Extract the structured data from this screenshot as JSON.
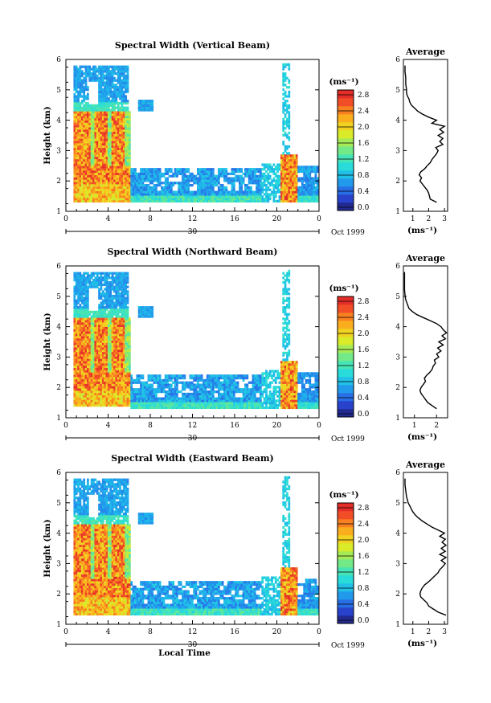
{
  "chart_data": [
    {
      "type": "heatmap",
      "title": "Spectral Width (Vertical Beam)",
      "ylabel": "Height (km)",
      "xlabel": "",
      "x_ticks": [
        "0",
        "4",
        "8",
        "12",
        "16",
        "20",
        "0"
      ],
      "y_ticks": [
        "1",
        "2",
        "3",
        "4",
        "5",
        "6"
      ],
      "xlim_hours": [
        0,
        24
      ],
      "ylim_km": [
        1,
        6
      ],
      "date_label": "30",
      "date_suffix": "Oct 1999",
      "colorbar": {
        "unit": "(ms⁻¹)",
        "ticks": [
          "0.0",
          "0.4",
          "0.8",
          "1.2",
          "1.6",
          "2.0",
          "2.4",
          "2.8"
        ],
        "range": [
          0.0,
          3.0
        ]
      },
      "average_profile": {
        "title": "Average",
        "xlabel": "(ms⁻¹)",
        "x_ticks": [
          "1",
          "2",
          "3"
        ],
        "xlim": [
          0.4,
          3.2
        ],
        "y_ticks": [
          "1",
          "2",
          "3",
          "4",
          "5",
          "6"
        ],
        "height_km": [
          1.3,
          1.4,
          1.5,
          1.6,
          1.7,
          1.8,
          1.9,
          2.0,
          2.1,
          2.2,
          2.3,
          2.4,
          2.5,
          2.6,
          2.7,
          2.8,
          2.9,
          3.0,
          3.1,
          3.2,
          3.3,
          3.4,
          3.5,
          3.6,
          3.7,
          3.8,
          3.9,
          4.0,
          4.1,
          4.2,
          4.3,
          4.4,
          4.5,
          4.6,
          4.7,
          4.8,
          4.9,
          5.0,
          5.2,
          5.4,
          5.6,
          5.8
        ],
        "width_ms": [
          2.5,
          2.1,
          2.05,
          2.0,
          1.9,
          1.75,
          1.6,
          1.45,
          1.55,
          1.4,
          1.5,
          1.75,
          1.9,
          2.1,
          2.2,
          2.35,
          2.5,
          2.6,
          2.45,
          2.9,
          2.7,
          2.9,
          2.6,
          2.95,
          2.7,
          3.0,
          2.2,
          2.5,
          2.0,
          1.6,
          1.3,
          1.1,
          0.9,
          0.8,
          0.75,
          0.65,
          0.6,
          0.6,
          0.55,
          0.55,
          0.5,
          0.5
        ]
      }
    },
    {
      "type": "heatmap",
      "title": "Spectral Width (Northward Beam)",
      "ylabel": "Height (km)",
      "xlabel": "",
      "x_ticks": [
        "0",
        "4",
        "8",
        "12",
        "16",
        "20",
        "0"
      ],
      "y_ticks": [
        "1",
        "2",
        "3",
        "4",
        "5",
        "6"
      ],
      "xlim_hours": [
        0,
        24
      ],
      "ylim_km": [
        1,
        6
      ],
      "date_label": "30",
      "date_suffix": "Oct 1999",
      "colorbar": {
        "unit": "(ms⁻¹)",
        "ticks": [
          "0.0",
          "0.4",
          "0.8",
          "1.2",
          "1.6",
          "2.0",
          "2.4",
          "2.8"
        ],
        "range": [
          0.0,
          3.0
        ]
      },
      "average_profile": {
        "title": "Average",
        "xlabel": "(ms⁻¹)",
        "x_ticks": [
          "1",
          "2"
        ],
        "xlim": [
          0.5,
          2.5
        ],
        "y_ticks": [
          "1",
          "2",
          "3",
          "4",
          "5",
          "6"
        ],
        "height_km": [
          1.3,
          1.4,
          1.5,
          1.6,
          1.7,
          1.8,
          1.9,
          2.0,
          2.1,
          2.2,
          2.3,
          2.4,
          2.5,
          2.6,
          2.7,
          2.8,
          2.9,
          3.0,
          3.1,
          3.2,
          3.3,
          3.4,
          3.5,
          3.6,
          3.7,
          3.8,
          3.9,
          4.0,
          4.1,
          4.2,
          4.3,
          4.4,
          4.5,
          4.6,
          4.7,
          4.8,
          4.9,
          5.0,
          5.2,
          5.4,
          5.6,
          5.8
        ],
        "width_ms": [
          2.0,
          1.8,
          1.6,
          1.5,
          1.4,
          1.3,
          1.25,
          1.3,
          1.4,
          1.5,
          1.45,
          1.55,
          1.7,
          1.8,
          1.85,
          1.95,
          1.9,
          2.1,
          2.0,
          2.2,
          2.05,
          2.3,
          2.1,
          2.4,
          2.25,
          2.45,
          2.3,
          2.2,
          2.0,
          1.7,
          1.4,
          1.1,
          0.9,
          0.75,
          0.7,
          0.65,
          0.6,
          0.58,
          0.55,
          0.55,
          0.55,
          0.55
        ]
      }
    },
    {
      "type": "heatmap",
      "title": "Spectral Width (Eastward Beam)",
      "ylabel": "Height (km)",
      "xlabel": "Local Time",
      "x_ticks": [
        "0",
        "4",
        "8",
        "12",
        "16",
        "20",
        "0"
      ],
      "y_ticks": [
        "1",
        "2",
        "3",
        "4",
        "5",
        "6"
      ],
      "xlim_hours": [
        0,
        24
      ],
      "ylim_km": [
        1,
        6
      ],
      "date_label": "30",
      "date_suffix": "Oct 1999",
      "colorbar": {
        "unit": "(ms⁻¹)",
        "ticks": [
          "0.0",
          "0.4",
          "0.8",
          "1.2",
          "1.6",
          "2.0",
          "2.4",
          "2.8"
        ],
        "range": [
          0.0,
          3.0
        ]
      },
      "average_profile": {
        "title": "Average",
        "xlabel": "(ms⁻¹)",
        "x_ticks": [
          "1",
          "2",
          "3"
        ],
        "xlim": [
          0.4,
          3.2
        ],
        "y_ticks": [
          "1",
          "2",
          "3",
          "4",
          "5",
          "6"
        ],
        "height_km": [
          1.3,
          1.4,
          1.5,
          1.6,
          1.7,
          1.8,
          1.9,
          2.0,
          2.1,
          2.2,
          2.3,
          2.4,
          2.5,
          2.6,
          2.7,
          2.8,
          2.9,
          3.0,
          3.1,
          3.2,
          3.3,
          3.4,
          3.5,
          3.6,
          3.7,
          3.8,
          3.9,
          4.0,
          4.1,
          4.2,
          4.3,
          4.4,
          4.5,
          4.6,
          4.7,
          4.8,
          4.9,
          5.0,
          5.2,
          5.4,
          5.6,
          5.8
        ],
        "width_ms": [
          3.1,
          2.6,
          2.3,
          2.0,
          1.9,
          1.7,
          1.5,
          1.45,
          1.5,
          1.6,
          1.75,
          2.0,
          2.2,
          2.4,
          2.6,
          2.7,
          2.9,
          3.05,
          2.8,
          3.1,
          2.7,
          3.05,
          2.8,
          3.1,
          2.85,
          3.05,
          2.7,
          3.0,
          2.6,
          2.2,
          1.9,
          1.6,
          1.35,
          1.15,
          1.0,
          0.9,
          0.8,
          0.7,
          0.6,
          0.55,
          0.5,
          0.5
        ]
      }
    }
  ]
}
